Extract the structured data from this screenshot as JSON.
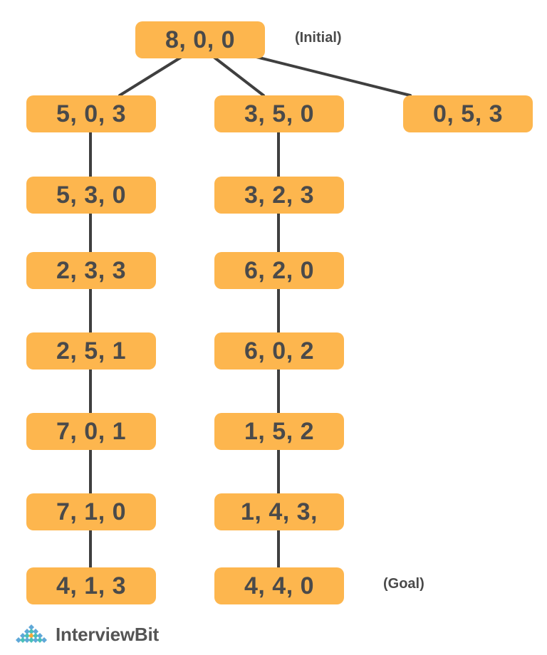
{
  "nodes": {
    "n800": "8, 0, 0",
    "n503": "5, 0, 3",
    "n350": "3, 5, 0",
    "n053": "0, 5, 3",
    "n530": "5, 3, 0",
    "n323": "3, 2, 3",
    "n233": "2, 3, 3",
    "n620": "6, 2, 0",
    "n251": "2, 5, 1",
    "n602": "6, 0, 2",
    "n701": "7, 0, 1",
    "n152": "1, 5, 2",
    "n710": "7, 1, 0",
    "n143": "1, 4, 3,",
    "n413": "4, 1, 3",
    "n440": "4, 4, 0"
  },
  "annotations": {
    "initial": "(Initial)",
    "goal": "(Goal)"
  },
  "brand": {
    "name": "InterviewBit",
    "logo_icon": "diamond-grid-logo-icon"
  },
  "colors": {
    "node_fill": "#fdb64e",
    "node_text": "#4a4a4a",
    "edge": "#3f3f3f",
    "logo_blue": "#5fa8d8",
    "logo_teal": "#49c0b8",
    "logo_orange": "#f7a93b"
  }
}
